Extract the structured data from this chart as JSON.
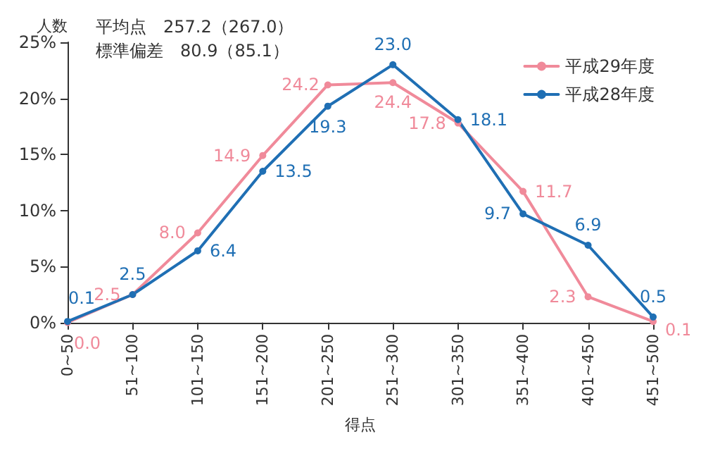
{
  "chart_data": {
    "type": "line",
    "ylabel": "人数",
    "xlabel": "得点",
    "annotations": [
      "平均点　257.2（267.0）",
      "標準偏差　80.9（85.1）",
      {
        "text": "24.2",
        "x": "201~250",
        "y": 21.2
      },
      {
        "text": "24.4",
        "x": "251~300",
        "y": 21.4
      }
    ],
    "categories": [
      "0~50",
      "51~100",
      "101~150",
      "151~200",
      "201~250",
      "251~300",
      "301~350",
      "351~400",
      "401~450",
      "451~500"
    ],
    "series": [
      {
        "name": "平成29年度",
        "color": "#f08a9a",
        "values": [
          0.0,
          2.5,
          8.0,
          14.9,
          21.2,
          21.4,
          17.8,
          11.7,
          2.3,
          0.1
        ],
        "value_labels": [
          "0.0",
          "2.5",
          "8.0",
          "14.9",
          null,
          null,
          "17.8",
          "11.7",
          "2.3",
          "0.1"
        ]
      },
      {
        "name": "平成28年度",
        "color": "#1f6fb4",
        "values": [
          0.1,
          2.5,
          6.4,
          13.5,
          19.3,
          23.0,
          18.1,
          9.7,
          6.9,
          0.5
        ],
        "value_labels": [
          "0.1",
          "2.5",
          "6.4",
          "13.5",
          "19.3",
          "23.0",
          "18.1",
          "9.7",
          "6.9",
          "0.5"
        ]
      }
    ],
    "ylim": [
      0,
      25
    ],
    "yticks": [
      {
        "value": 0,
        "label": "0%"
      },
      {
        "value": 5,
        "label": "5%"
      },
      {
        "value": 10,
        "label": "10%"
      },
      {
        "value": 15,
        "label": "15%"
      },
      {
        "value": 20,
        "label": "20%"
      },
      {
        "value": 25,
        "label": "25%"
      }
    ],
    "legend": "top right",
    "marker": "circle",
    "line_style": "solid",
    "grid": false
  }
}
